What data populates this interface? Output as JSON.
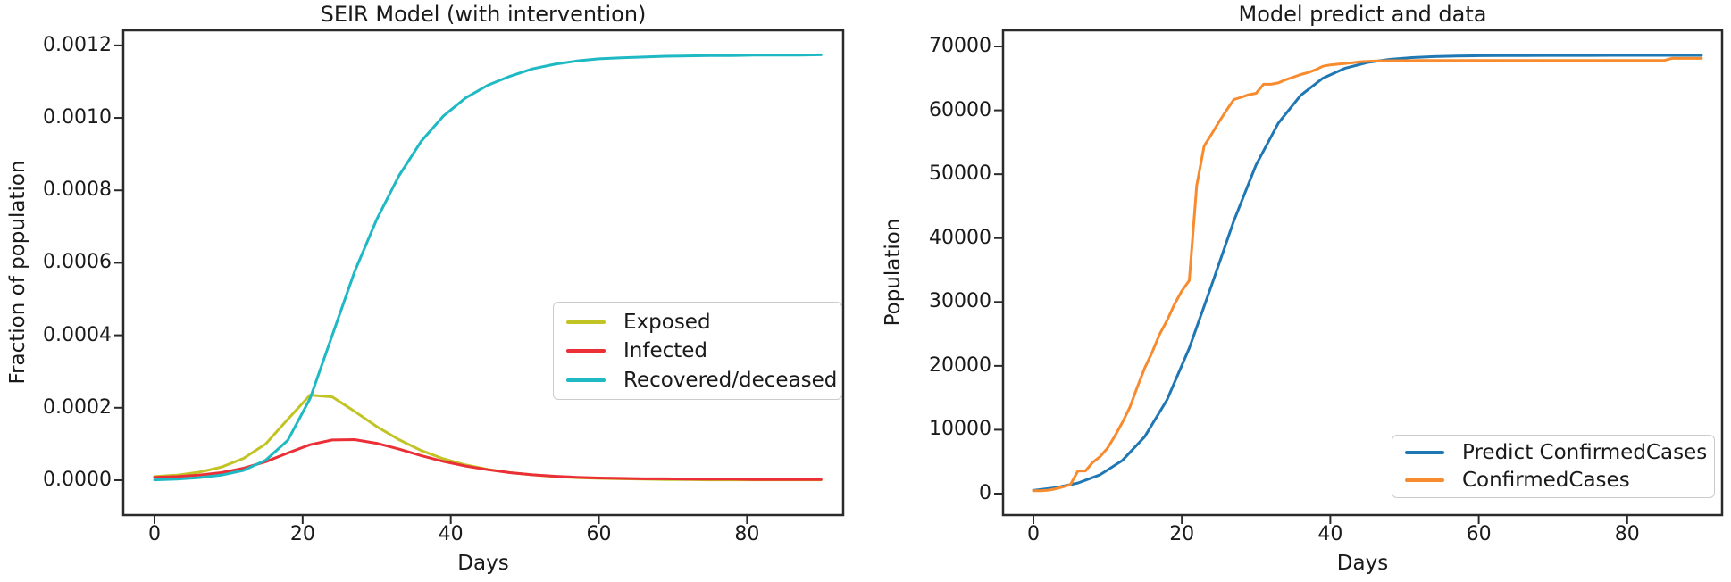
{
  "colors": {
    "background": "#ffffff",
    "text": "#1a1a1a",
    "spine": "#2a2a2a",
    "legend_border": "#cccccc",
    "exposed": "#c2c426",
    "infected": "#ea3036",
    "recovered": "#1fb9c4",
    "predict_blue": "#1f77b4",
    "confirmed_orange": "#f78b2e"
  },
  "chart_data": [
    {
      "type": "line",
      "title": "SEIR Model (with intervention)",
      "xlabel": "Days",
      "ylabel": "Fraction of population",
      "grid": false,
      "legend_position": "center right",
      "xlim": [
        -4.34,
        93.1
      ],
      "ylim": [
        -9.86e-05,
        0.001244
      ],
      "xticks": [
        0,
        20,
        40,
        60,
        80
      ],
      "xtick_labels": [
        "0",
        "20",
        "40",
        "60",
        "80"
      ],
      "yticks": [
        0,
        0.0002,
        0.0004,
        0.0006,
        0.0008,
        0.001,
        0.0012
      ],
      "ytick_labels": [
        "0.0000",
        "0.0002",
        "0.0004",
        "0.0006",
        "0.0008",
        "0.0010",
        "0.0012"
      ],
      "series": [
        {
          "name": "Exposed",
          "color": "#c2c426",
          "x": [
            0,
            3,
            6,
            9,
            12,
            15,
            18,
            21,
            24,
            27,
            30,
            33,
            36,
            39,
            42,
            45,
            48,
            51,
            54,
            57,
            60,
            63,
            66,
            69,
            72,
            75,
            78,
            81,
            84,
            87,
            90
          ],
          "values": [
            1e-05,
            1.4e-05,
            2.2e-05,
            3.6e-05,
            6e-05,
            0.0001,
            0.000168,
            0.000235,
            0.00023,
            0.00019,
            0.000148,
            0.000112,
            8.2e-05,
            5.9e-05,
            4.2e-05,
            3e-05,
            2.1e-05,
            1.5e-05,
            1e-05,
            7e-06,
            5e-06,
            4e-06,
            3e-06,
            2e-06,
            2e-06,
            1e-06,
            1e-06,
            1e-06,
            1e-06,
            1e-06,
            1e-06
          ]
        },
        {
          "name": "Infected",
          "color": "#ea3036",
          "x": [
            0,
            3,
            6,
            9,
            12,
            15,
            18,
            21,
            24,
            27,
            30,
            33,
            36,
            39,
            42,
            45,
            48,
            51,
            54,
            57,
            60,
            63,
            66,
            69,
            72,
            75,
            78,
            81,
            84,
            87,
            90
          ],
          "values": [
            8e-06,
            1e-05,
            1.4e-05,
            2.1e-05,
            3.3e-05,
            5.1e-05,
            7.5e-05,
            9.8e-05,
            0.000111,
            0.000112,
            0.000102,
            8.6e-05,
            6.8e-05,
            5.2e-05,
            3.9e-05,
            2.9e-05,
            2.1e-05,
            1.5e-05,
            1.1e-05,
            8e-06,
            6e-06,
            5e-06,
            4e-06,
            4e-06,
            3e-06,
            3e-06,
            3e-06,
            2e-06,
            2e-06,
            2e-06,
            2e-06
          ]
        },
        {
          "name": "Recovered/deceased",
          "color": "#1fb9c4",
          "x": [
            0,
            3,
            6,
            9,
            12,
            15,
            18,
            21,
            24,
            27,
            30,
            33,
            36,
            39,
            42,
            45,
            48,
            51,
            54,
            57,
            60,
            63,
            66,
            69,
            72,
            75,
            78,
            81,
            84,
            87,
            90
          ],
          "values": [
            1e-06,
            3e-06,
            7e-06,
            1.4e-05,
            2.7e-05,
            5.5e-05,
            0.00011,
            0.000225,
            0.0004,
            0.000575,
            0.00072,
            0.00084,
            0.000935,
            0.001005,
            0.001055,
            0.00109,
            0.001115,
            0.001135,
            0.001148,
            0.001157,
            0.001163,
            0.001166,
            0.001168,
            0.00117,
            0.001171,
            0.001172,
            0.001172,
            0.001173,
            0.001173,
            0.001173,
            0.001174
          ]
        }
      ]
    },
    {
      "type": "line",
      "title": "Model predict and data",
      "xlabel": "Days",
      "ylabel": "Population",
      "grid": false,
      "legend_position": "lower right",
      "xlim": [
        -4.21,
        92.9
      ],
      "ylim": [
        -3493,
        72657
      ],
      "xticks": [
        0,
        20,
        40,
        60,
        80
      ],
      "xtick_labels": [
        "0",
        "20",
        "40",
        "60",
        "80"
      ],
      "yticks": [
        0,
        10000,
        20000,
        30000,
        40000,
        50000,
        60000,
        70000
      ],
      "ytick_labels": [
        "0",
        "10000",
        "20000",
        "30000",
        "40000",
        "50000",
        "60000",
        "70000"
      ],
      "series": [
        {
          "name": "Predict ConfirmedCases",
          "color": "#1f77b4",
          "x": [
            0,
            3,
            6,
            9,
            12,
            15,
            18,
            21,
            24,
            27,
            30,
            33,
            36,
            39,
            42,
            45,
            48,
            51,
            54,
            57,
            60,
            63,
            66,
            69,
            72,
            75,
            78,
            81,
            84,
            87,
            90
          ],
          "values": [
            507,
            918,
            1657,
            2957,
            5205,
            8921,
            14690,
            22770,
            32589,
            42701,
            51463,
            58003,
            62348,
            65023,
            66589,
            67482,
            67981,
            68259,
            68413,
            68497,
            68543,
            68569,
            68583,
            68591,
            68595,
            68597,
            68599,
            68599,
            68600,
            68600,
            68600
          ]
        },
        {
          "name": "ConfirmedCases",
          "color": "#f78b2e",
          "x": [
            0,
            1,
            2,
            3,
            4,
            5,
            6,
            7,
            8,
            9,
            10,
            11,
            12,
            13,
            14,
            15,
            16,
            17,
            18,
            19,
            20,
            21,
            22,
            23,
            24,
            25,
            26,
            27,
            28,
            29,
            30,
            31,
            32,
            33,
            34,
            35,
            36,
            37,
            38,
            39,
            40,
            41,
            42,
            43,
            44,
            45,
            46,
            47,
            48,
            49,
            50,
            51,
            52,
            53,
            54,
            55,
            56,
            57,
            58,
            59,
            60,
            61,
            62,
            63,
            64,
            65,
            66,
            67,
            68,
            69,
            70,
            71,
            72,
            73,
            74,
            75,
            76,
            77,
            78,
            79,
            80,
            81,
            82,
            83,
            84,
            85,
            86,
            87,
            88,
            89,
            90
          ],
          "values": [
            444,
            444,
            549,
            761,
            1058,
            1423,
            3554,
            3554,
            4903,
            5806,
            7153,
            9074,
            11177,
            13522,
            16678,
            19665,
            22112,
            24953,
            27100,
            29631,
            31728,
            33366,
            48206,
            54406,
            56249,
            58182,
            59989,
            61682,
            62031,
            62442,
            62662,
            64084,
            64084,
            64287,
            64786,
            65187,
            65596,
            65914,
            66337,
            66907,
            67103,
            67217,
            67332,
            67466,
            67592,
            67666,
            67707,
            67743,
            67760,
            67773,
            67781,
            67786,
            67790,
            67794,
            67798,
            67799,
            67800,
            67800,
            67800,
            67800,
            67800,
            67801,
            67801,
            67801,
            67801,
            67801,
            67801,
            67801,
            67802,
            67802,
            67802,
            67802,
            67802,
            67802,
            67803,
            67803,
            67803,
            67803,
            67803,
            67803,
            67803,
            67803,
            67803,
            67803,
            67803,
            67803,
            68128,
            68128,
            68128,
            68128,
            68128
          ]
        }
      ]
    }
  ]
}
